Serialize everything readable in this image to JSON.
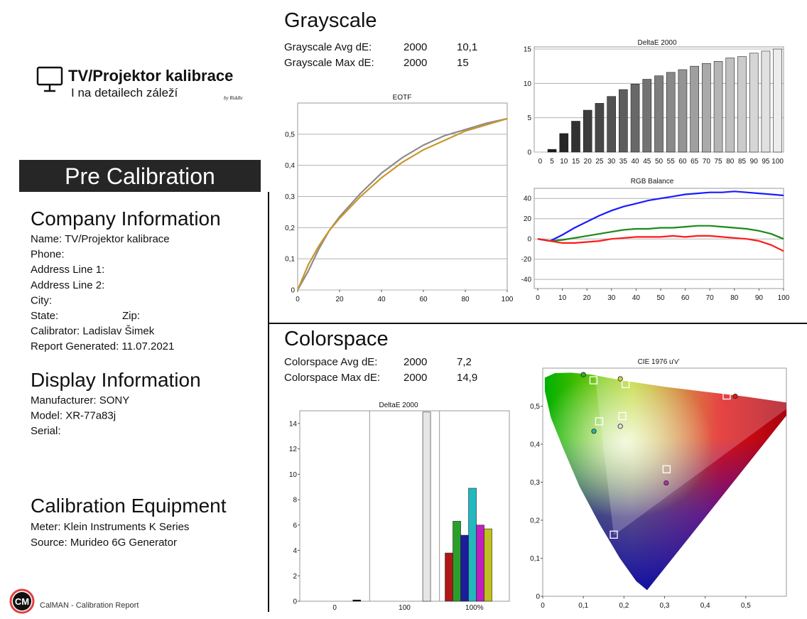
{
  "logo": {
    "title": "TV/Projektor kalibrace",
    "subtitle": "I na detailech záleží",
    "signature": "by Riddle"
  },
  "banner": "Pre Calibration",
  "company": {
    "heading": "Company Information",
    "lines": [
      "Name: TV/Projektor kalibrace",
      "Phone:",
      "Address Line 1:",
      "Address Line 2:",
      "City:",
      "State:",
      "Calibrator: Ladislav Šimek",
      "Report Generated: 11.07.2021"
    ],
    "zip": "Zip:"
  },
  "display": {
    "heading": "Display Information",
    "lines": [
      "Manufacturer: SONY",
      "Model: XR-77a83j",
      "Serial:"
    ]
  },
  "equipment": {
    "heading": "Calibration Equipment",
    "lines": [
      "Meter: Klein Instruments K Series",
      "Source: Murideo 6G Generator"
    ]
  },
  "footer": {
    "badge": "CM",
    "text": "CalMAN - Calibration Report"
  },
  "grayscale": {
    "heading": "Grayscale",
    "stats": [
      [
        "Grayscale Avg dE:",
        "2000",
        "10,1"
      ],
      [
        "Grayscale Max dE:",
        "2000",
        "15"
      ]
    ]
  },
  "colorspace": {
    "heading": "Colorspace",
    "stats": [
      [
        "Colorspace Avg dE:",
        "2000",
        "7,2"
      ],
      [
        "Colorspace Max dE:",
        "2000",
        "14,9"
      ]
    ]
  },
  "chart_data": [
    {
      "type": "line",
      "title": "EOTF",
      "x": [
        0,
        5,
        10,
        15,
        20,
        30,
        40,
        50,
        60,
        70,
        80,
        90,
        100
      ],
      "series": [
        {
          "color": "#8c8c8c",
          "values": [
            0,
            0.06,
            0.13,
            0.19,
            0.235,
            0.31,
            0.375,
            0.425,
            0.465,
            0.495,
            0.515,
            0.535,
            0.55
          ]
        },
        {
          "color": "#c8962a",
          "values": [
            0,
            0.08,
            0.14,
            0.19,
            0.23,
            0.3,
            0.36,
            0.41,
            0.45,
            0.48,
            0.51,
            0.53,
            0.55
          ]
        }
      ],
      "xlim": [
        0,
        100
      ],
      "xticks": [
        0,
        20,
        40,
        60,
        80,
        100
      ],
      "ylim": [
        0,
        0.6
      ],
      "yticks": [
        0,
        {
          "value": 0.1,
          "label": "0,1"
        },
        {
          "value": 0.2,
          "label": "0,2"
        },
        {
          "value": 0.3,
          "label": "0,3"
        },
        {
          "value": 0.4,
          "label": "0,4"
        },
        {
          "value": 0.5,
          "label": "0,5"
        }
      ],
      "grid": true
    },
    {
      "type": "bar",
      "title": "DeltaE 2000",
      "categories": [
        "0",
        "5",
        "10",
        "15",
        "20",
        "25",
        "30",
        "35",
        "40",
        "45",
        "50",
        "55",
        "60",
        "65",
        "70",
        "75",
        "80",
        "85",
        "90",
        "95",
        "100"
      ],
      "values": [
        0,
        0.4,
        2.7,
        4.5,
        6.1,
        7.1,
        8.1,
        9.1,
        9.9,
        10.6,
        11.1,
        11.6,
        12.0,
        12.5,
        12.9,
        13.2,
        13.7,
        13.9,
        14.4,
        14.7,
        15
      ],
      "colors": [
        "#101010",
        "#1b1b1b",
        "#262626",
        "#313131",
        "#3c3c3c",
        "#474747",
        "#525252",
        "#5d5d5d",
        "#686868",
        "#737373",
        "#7e7e7e",
        "#898989",
        "#949494",
        "#9f9f9f",
        "#aaaaaa",
        "#b5b5b5",
        "#c0c0c0",
        "#cbcbcb",
        "#d6d6d6",
        "#e1e1e1",
        "#ececec"
      ],
      "ylim": [
        0,
        15
      ],
      "yticks": [
        0,
        5,
        10,
        15
      ],
      "grid": true
    },
    {
      "type": "line",
      "title": "RGB Balance",
      "x": [
        0,
        5,
        10,
        15,
        20,
        25,
        30,
        35,
        40,
        45,
        50,
        55,
        60,
        65,
        70,
        75,
        80,
        85,
        90,
        95,
        100
      ],
      "series": [
        {
          "color": "#1a1aff",
          "values": [
            0,
            -2,
            4,
            11,
            17,
            23,
            28,
            32,
            35,
            38,
            40,
            42,
            44,
            45,
            46,
            46,
            47,
            46,
            45,
            44,
            43
          ]
        },
        {
          "color": "#1a8a1a",
          "values": [
            0,
            -2,
            -1,
            1,
            3,
            5,
            7,
            9,
            10,
            10,
            11,
            11,
            12,
            13,
            13,
            12,
            11,
            10,
            8,
            5,
            0
          ]
        },
        {
          "color": "#ff1a1a",
          "values": [
            0,
            -2,
            -4,
            -4,
            -3,
            -2,
            0,
            1,
            2,
            2,
            2,
            3,
            2,
            3,
            3,
            2,
            1,
            0,
            -2,
            -6,
            -12
          ]
        }
      ],
      "xlim": [
        0,
        100
      ],
      "xticks": [
        0,
        10,
        20,
        30,
        40,
        50,
        60,
        70,
        80,
        90,
        100
      ],
      "ylim": [
        -49,
        50
      ],
      "yticks": [
        -40,
        -20,
        0,
        20,
        40
      ],
      "grid": true
    },
    {
      "type": "grouped",
      "title": "DeltaE 2000",
      "groups": [
        {
          "label": "0",
          "colors": [
            "#000000"
          ],
          "values": [
            0.1
          ]
        },
        {
          "label": "100",
          "colors": [
            "#e6e6e6"
          ],
          "values": [
            14.9
          ]
        },
        {
          "label": "100%",
          "colors": [
            "#b01818",
            "#2aa02a",
            "#1c1c9c",
            "#22b8c0",
            "#c020c0",
            "#c0c020"
          ],
          "values": [
            3.8,
            6.3,
            5.2,
            8.9,
            6.0,
            5.7
          ]
        }
      ],
      "ylim": [
        0,
        15
      ],
      "yticks": [
        0,
        2,
        4,
        6,
        8,
        10,
        12,
        14
      ],
      "grid": false
    },
    {
      "type": "scatter",
      "title": "CIE 1976 u'v'",
      "series": [
        {
          "marker": "square",
          "color": "#ffffff",
          "x": [
            0.125,
            0.204,
            0.453,
            0.196,
            0.139,
            0.305,
            0.175
          ],
          "y": [
            0.568,
            0.558,
            0.528,
            0.474,
            0.46,
            0.334,
            0.162
          ]
        },
        {
          "marker": "circle",
          "colors": [
            "#30b030",
            "#d0d040",
            "#d02020",
            "#e0e0e0",
            "#30b0a0",
            "#b030b0"
          ],
          "x": [
            0.1,
            0.191,
            0.474,
            0.191,
            0.126,
            0.304
          ],
          "y": [
            0.583,
            0.572,
            0.526,
            0.447,
            0.434,
            0.298
          ]
        }
      ],
      "xlim": [
        0,
        0.6
      ],
      "ylim": [
        0,
        0.6
      ],
      "xticks": [
        0,
        {
          "value": 0.1,
          "label": "0,1"
        },
        {
          "value": 0.2,
          "label": "0,2"
        },
        {
          "value": 0.3,
          "label": "0,3"
        },
        {
          "value": 0.4,
          "label": "0,4"
        },
        {
          "value": 0.5,
          "label": "0,5"
        }
      ],
      "yticks": [
        0,
        {
          "value": 0.1,
          "label": "0,1"
        },
        {
          "value": 0.2,
          "label": "0,2"
        },
        {
          "value": 0.3,
          "label": "0,3"
        },
        {
          "value": 0.4,
          "label": "0,4"
        },
        {
          "value": 0.5,
          "label": "0,5"
        }
      ],
      "grid": false
    }
  ]
}
